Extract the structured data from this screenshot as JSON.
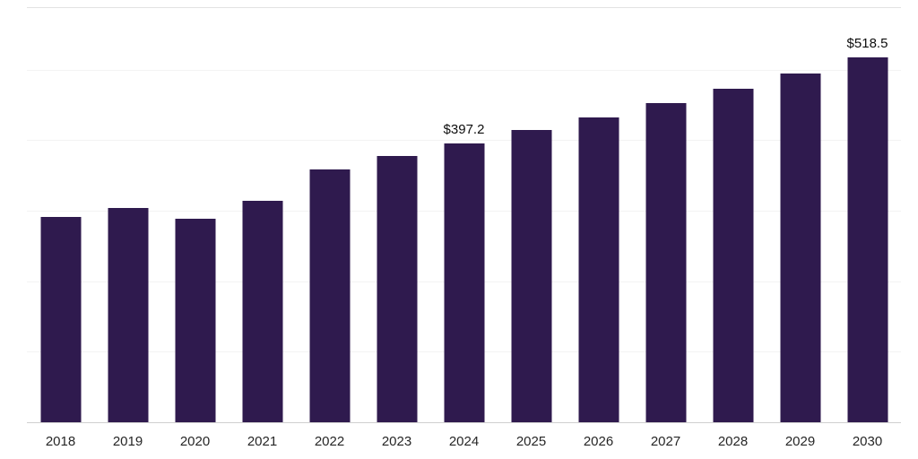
{
  "chart_data": {
    "type": "bar",
    "title": "",
    "xlabel": "",
    "ylabel": "",
    "categories": [
      "2018",
      "2019",
      "2020",
      "2021",
      "2022",
      "2023",
      "2024",
      "2025",
      "2026",
      "2027",
      "2028",
      "2029",
      "2030"
    ],
    "values": [
      292,
      305,
      290,
      315,
      360,
      379,
      397.2,
      415.3,
      434.2,
      453.9,
      474.6,
      496.1,
      518.5
    ],
    "data_labels": [
      null,
      null,
      null,
      null,
      null,
      null,
      "$397.2",
      null,
      null,
      null,
      null,
      null,
      "$518.5"
    ],
    "ylim": [
      0,
      590
    ],
    "gridline_values": [
      100,
      200,
      300,
      400,
      500
    ],
    "grid_on": true,
    "legend": "none",
    "bar_color": "#2f1a4e",
    "grid_color": "#f3f3f3",
    "top_border_color": "#e2e2e2",
    "axis_line_color": "#cfcfcf",
    "tick_label_color": "#262626",
    "data_label_color": "#0d0d0d"
  }
}
